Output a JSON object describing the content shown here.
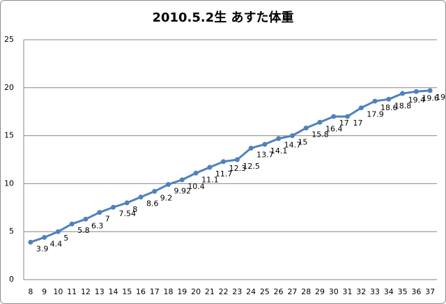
{
  "chart_data": {
    "type": "line",
    "title": "2010.5.2生 あすた体重",
    "categories": [
      8,
      9,
      10,
      11,
      12,
      13,
      14,
      15,
      16,
      17,
      18,
      19,
      20,
      21,
      22,
      23,
      24,
      25,
      26,
      27,
      28,
      29,
      30,
      31,
      32,
      33,
      34,
      35,
      36,
      37
    ],
    "values": [
      3.9,
      4.4,
      5,
      5.8,
      6.3,
      7,
      7.54,
      8,
      8.6,
      9.2,
      9.92,
      10.4,
      11.1,
      11.7,
      12.3,
      12.5,
      13.7,
      14.1,
      14.7,
      15,
      15.8,
      16.4,
      17,
      17,
      17.9,
      18.6,
      18.8,
      19.4,
      19.6,
      19.7
    ],
    "color": "#4f81bd",
    "ylim": [
      0,
      25
    ],
    "yticks": [
      0,
      5,
      10,
      15,
      20,
      25
    ],
    "grid": true
  }
}
